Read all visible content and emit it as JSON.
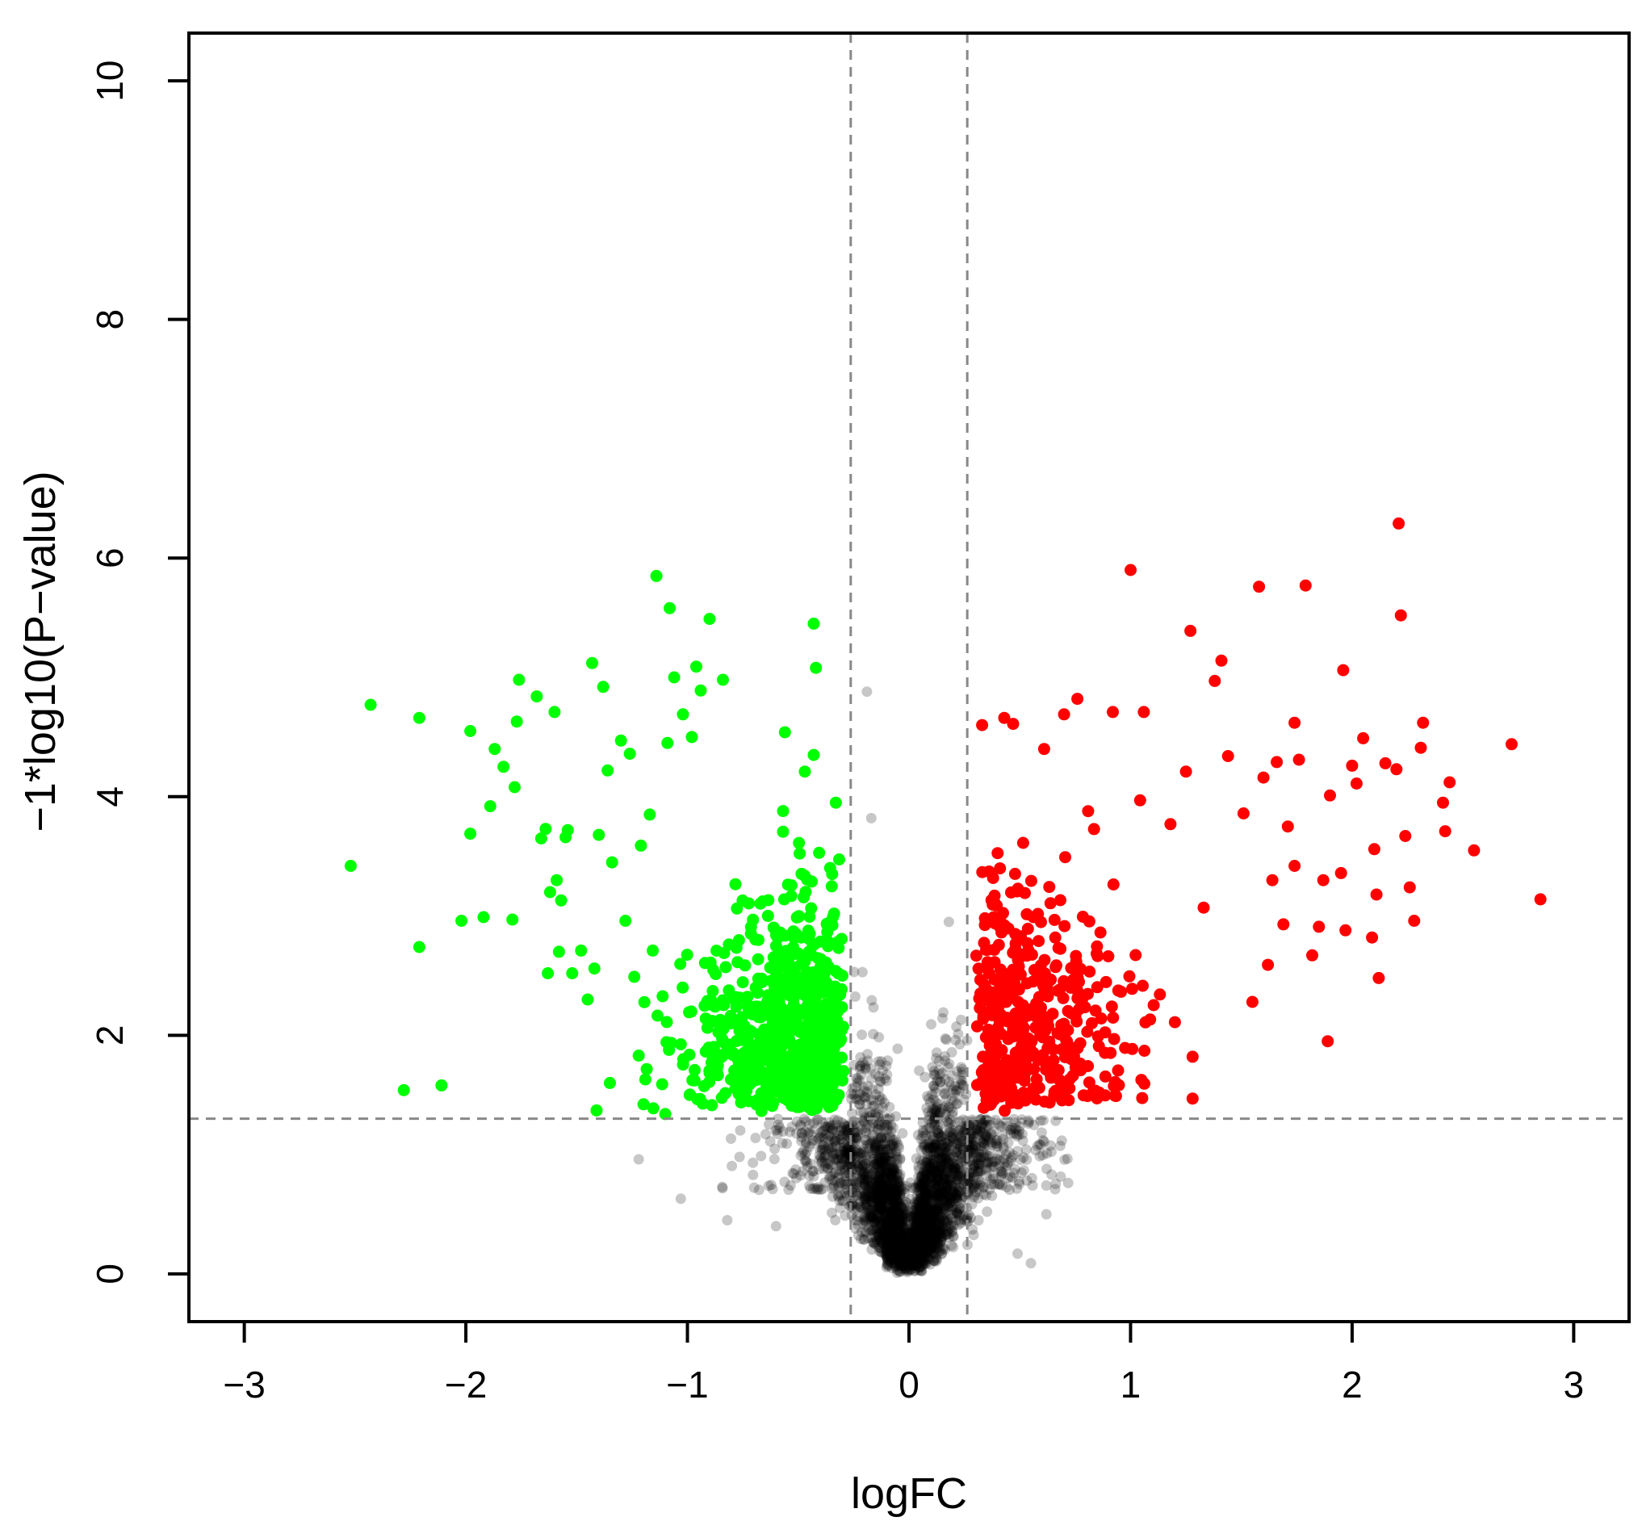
{
  "chart_data": {
    "type": "scatter",
    "title": "",
    "xlabel": "logFC",
    "ylabel": "−1*log10(P−value)",
    "xlim": [
      -3.25,
      3.25
    ],
    "ylim": [
      -0.4,
      10.4
    ],
    "x_ticks": [
      -3,
      -2,
      -1,
      0,
      1,
      2,
      3
    ],
    "x_tick_labels": [
      "−3",
      "−2",
      "−1",
      "0",
      "1",
      "2",
      "3"
    ],
    "y_ticks": [
      0,
      2,
      4,
      6,
      8,
      10
    ],
    "y_tick_labels": [
      "0",
      "2",
      "4",
      "6",
      "8",
      "10"
    ],
    "grid": false,
    "thresholds": {
      "logfc_cutoffs": [
        -0.263,
        0.263
      ],
      "pvalue_cutoff_neglog10": 1.301
    },
    "colors": {
      "down": "#00ff00",
      "up": "#ff0000",
      "not_significant": "rgba(0,0,0,0.22)",
      "threshold_line": "#888888"
    },
    "series": [
      {
        "key": "down",
        "color": "#00ff00",
        "points": [
          [
            -2.52,
            3.42
          ],
          [
            -2.43,
            4.77
          ],
          [
            -2.28,
            1.54
          ],
          [
            -2.21,
            4.66
          ],
          [
            -2.21,
            2.74
          ],
          [
            -2.11,
            1.58
          ],
          [
            -2.02,
            2.96
          ],
          [
            -1.98,
            4.55
          ],
          [
            -1.98,
            3.69
          ],
          [
            -1.92,
            2.99
          ],
          [
            -1.89,
            3.92
          ],
          [
            -1.87,
            4.4
          ],
          [
            -1.83,
            4.25
          ],
          [
            -1.79,
            2.97
          ],
          [
            -1.78,
            4.08
          ],
          [
            -1.77,
            4.63
          ],
          [
            -1.76,
            4.98
          ],
          [
            -1.68,
            4.84
          ],
          [
            -1.66,
            3.65
          ],
          [
            -1.64,
            3.73
          ],
          [
            -1.63,
            2.52
          ],
          [
            -1.62,
            3.2
          ],
          [
            -1.6,
            4.71
          ],
          [
            -1.59,
            3.3
          ],
          [
            -1.58,
            2.7
          ],
          [
            -1.57,
            3.13
          ],
          [
            -1.55,
            3.66
          ],
          [
            -1.54,
            3.72
          ],
          [
            -1.52,
            2.52
          ],
          [
            -1.48,
            2.71
          ],
          [
            -1.45,
            2.3
          ],
          [
            -1.43,
            5.12
          ],
          [
            -1.42,
            2.56
          ],
          [
            -1.41,
            1.37
          ],
          [
            -1.4,
            3.68
          ],
          [
            -1.38,
            4.92
          ],
          [
            -1.36,
            4.22
          ],
          [
            -1.35,
            1.6
          ],
          [
            -1.34,
            3.45
          ],
          [
            -1.3,
            4.47
          ],
          [
            -1.28,
            2.96
          ],
          [
            -1.26,
            4.36
          ],
          [
            -1.24,
            2.49
          ],
          [
            -1.22,
            1.83
          ],
          [
            -1.21,
            3.59
          ],
          [
            -1.19,
            1.63
          ],
          [
            -1.17,
            3.85
          ],
          [
            -1.14,
            5.85
          ],
          [
            -1.1,
            1.34
          ],
          [
            -1.09,
            4.45
          ],
          [
            -1.08,
            5.58
          ],
          [
            -1.06,
            5.0
          ],
          [
            -1.02,
            4.69
          ],
          [
            -0.99,
            1.5
          ],
          [
            -0.98,
            4.5
          ],
          [
            -0.96,
            5.09
          ],
          [
            -0.94,
            4.89
          ],
          [
            -0.9,
            5.49
          ],
          [
            -0.84,
            4.98
          ],
          [
            -0.79,
            1.84
          ],
          [
            -0.73,
            1.72
          ],
          [
            -0.66,
            1.69
          ],
          [
            -0.61,
            2.9
          ],
          [
            -0.56,
            4.54
          ],
          [
            -0.47,
            4.21
          ],
          [
            -0.43,
            4.35
          ],
          [
            -0.43,
            5.45
          ],
          [
            -0.42,
            5.08
          ],
          [
            -0.35,
            1.42
          ],
          [
            -0.33,
            3.95
          ]
        ],
        "cloud": {
          "count": 720,
          "x_range": [
            -1.35,
            -0.275
          ],
          "y_range": [
            1.31,
            4.2
          ],
          "note": "dense cluster of green points concentrated near x = -0.45, y = 1.5 to 2.5"
        }
      },
      {
        "key": "up",
        "color": "#ff0000",
        "points": [
          [
            0.33,
            4.6
          ],
          [
            0.43,
            4.66
          ],
          [
            0.47,
            4.61
          ],
          [
            0.61,
            4.4
          ],
          [
            0.7,
            4.69
          ],
          [
            0.76,
            4.82
          ],
          [
            0.92,
            4.71
          ],
          [
            1.0,
            5.9
          ],
          [
            1.06,
            4.71
          ],
          [
            1.18,
            3.77
          ],
          [
            1.2,
            2.11
          ],
          [
            1.25,
            4.21
          ],
          [
            1.27,
            5.39
          ],
          [
            1.28,
            1.82
          ],
          [
            1.28,
            1.47
          ],
          [
            1.33,
            3.07
          ],
          [
            1.38,
            4.97
          ],
          [
            1.41,
            5.14
          ],
          [
            1.44,
            4.34
          ],
          [
            1.51,
            3.86
          ],
          [
            1.55,
            2.28
          ],
          [
            1.58,
            5.76
          ],
          [
            1.6,
            4.16
          ],
          [
            1.62,
            2.59
          ],
          [
            1.64,
            3.3
          ],
          [
            1.66,
            4.29
          ],
          [
            1.69,
            2.93
          ],
          [
            1.71,
            3.75
          ],
          [
            1.74,
            3.42
          ],
          [
            1.74,
            4.62
          ],
          [
            1.76,
            4.31
          ],
          [
            1.79,
            5.77
          ],
          [
            1.82,
            2.67
          ],
          [
            1.85,
            2.91
          ],
          [
            1.87,
            3.3
          ],
          [
            1.89,
            1.95
          ],
          [
            1.9,
            4.01
          ],
          [
            1.95,
            3.36
          ],
          [
            1.96,
            5.06
          ],
          [
            1.97,
            2.88
          ],
          [
            2.0,
            4.26
          ],
          [
            2.02,
            4.11
          ],
          [
            2.05,
            4.49
          ],
          [
            2.09,
            2.82
          ],
          [
            2.1,
            3.56
          ],
          [
            2.11,
            3.18
          ],
          [
            2.12,
            2.48
          ],
          [
            2.15,
            4.28
          ],
          [
            2.2,
            4.23
          ],
          [
            2.21,
            6.29
          ],
          [
            2.22,
            5.52
          ],
          [
            2.24,
            3.67
          ],
          [
            2.26,
            3.24
          ],
          [
            2.28,
            2.96
          ],
          [
            2.31,
            4.41
          ],
          [
            2.32,
            4.62
          ],
          [
            2.41,
            3.95
          ],
          [
            2.42,
            3.71
          ],
          [
            2.44,
            4.12
          ],
          [
            2.55,
            3.55
          ],
          [
            2.72,
            4.44
          ],
          [
            2.85,
            3.14
          ]
        ],
        "cloud": {
          "count": 430,
          "x_range": [
            0.275,
            1.2
          ],
          "y_range": [
            1.31,
            4.1
          ],
          "note": "cluster of red points concentrated near x = 0.5, y = 1.5 to 3"
        }
      },
      {
        "key": "not_significant",
        "color": "rgba(0,0,0,0.22)",
        "points": [
          [
            -1.22,
            0.96
          ],
          [
            -1.03,
            0.63
          ],
          [
            -0.82,
            0.45
          ],
          [
            -0.6,
            0.4
          ],
          [
            -0.48,
            0.86
          ],
          [
            -0.19,
            4.88
          ],
          [
            -0.17,
            3.82
          ],
          [
            0.18,
            2.95
          ],
          [
            0.49,
            0.17
          ],
          [
            0.55,
            0.09
          ],
          [
            0.66,
            0.71
          ],
          [
            0.62,
            0.5
          ]
        ],
        "cloud": {
          "count": 3200,
          "shape": "V-shaped volcano core: points spread around |logFC| proportional to -log10(P)",
          "x_range": [
            -0.8,
            0.7
          ],
          "y_range": [
            0,
            2.9
          ]
        }
      }
    ]
  }
}
